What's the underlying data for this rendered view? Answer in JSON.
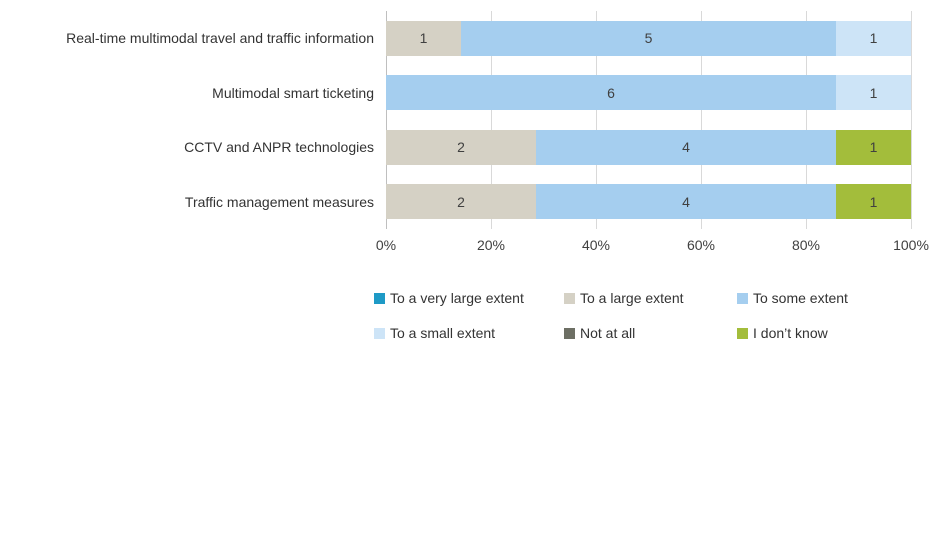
{
  "chart_data": {
    "type": "bar",
    "orientation": "horizontal_stacked",
    "title": "",
    "xlabel": "",
    "ylabel": "",
    "categories": [
      "Real-time multimodal travel and traffic information",
      "Multimodal smart ticketing",
      "CCTV and ANPR technologies",
      "Traffic management measures"
    ],
    "series": [
      {
        "name": "To a very large extent",
        "color": "#1e9ac6",
        "values": [
          0,
          0,
          0,
          0
        ]
      },
      {
        "name": "To a large extent",
        "color": "#d5d1c5",
        "values": [
          1,
          0,
          2,
          2
        ]
      },
      {
        "name": "To some extent",
        "color": "#a5ceef",
        "values": [
          5,
          6,
          4,
          4
        ]
      },
      {
        "name": "To a small extent",
        "color": "#cde4f7",
        "values": [
          1,
          1,
          0,
          0
        ]
      },
      {
        "name": "Not at all",
        "color": "#6d6f64",
        "values": [
          0,
          0,
          0,
          0
        ]
      },
      {
        "name": "I don’t know",
        "color": "#a3bd3b",
        "values": [
          0,
          0,
          1,
          1
        ]
      }
    ],
    "responses_per_row": 7,
    "x_axis": {
      "ticks": [
        "0%",
        "20%",
        "40%",
        "60%",
        "80%",
        "100%"
      ],
      "min": 0,
      "max": 100
    },
    "grid": true,
    "legend_position": "bottom",
    "value_labels_shown": true,
    "colors": {
      "gridline": "#d9d9d9",
      "axis_line": "#bfbfbf",
      "text": "#404040",
      "background": "#ffffff"
    }
  }
}
